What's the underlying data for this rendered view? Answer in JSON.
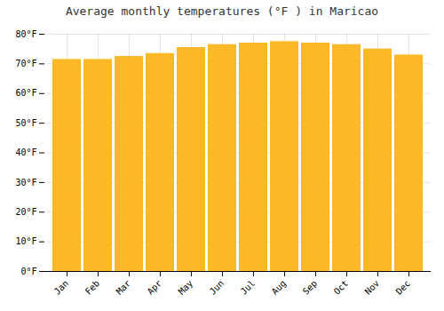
{
  "chart_data": {
    "type": "bar",
    "title": "Average monthly temperatures (°F ) in Maricao",
    "categories": [
      "Jan",
      "Feb",
      "Mar",
      "Apr",
      "May",
      "Jun",
      "Jul",
      "Aug",
      "Sep",
      "Oct",
      "Nov",
      "Dec"
    ],
    "values": [
      71.5,
      71.5,
      72.5,
      73.5,
      75.5,
      76.5,
      77.0,
      77.5,
      77.0,
      76.5,
      75.0,
      73.0
    ],
    "color": "#FDB828",
    "ylim": [
      0,
      80
    ],
    "yticks": [
      {
        "value": 0,
        "label": "0°F"
      },
      {
        "value": 10,
        "label": "10°F"
      },
      {
        "value": 20,
        "label": "20°F"
      },
      {
        "value": 30,
        "label": "30°F"
      },
      {
        "value": 40,
        "label": "40°F"
      },
      {
        "value": 50,
        "label": "50°F"
      },
      {
        "value": 60,
        "label": "60°F"
      },
      {
        "value": 70,
        "label": "70°F"
      },
      {
        "value": 80,
        "label": "80°F"
      }
    ],
    "grid": true
  }
}
